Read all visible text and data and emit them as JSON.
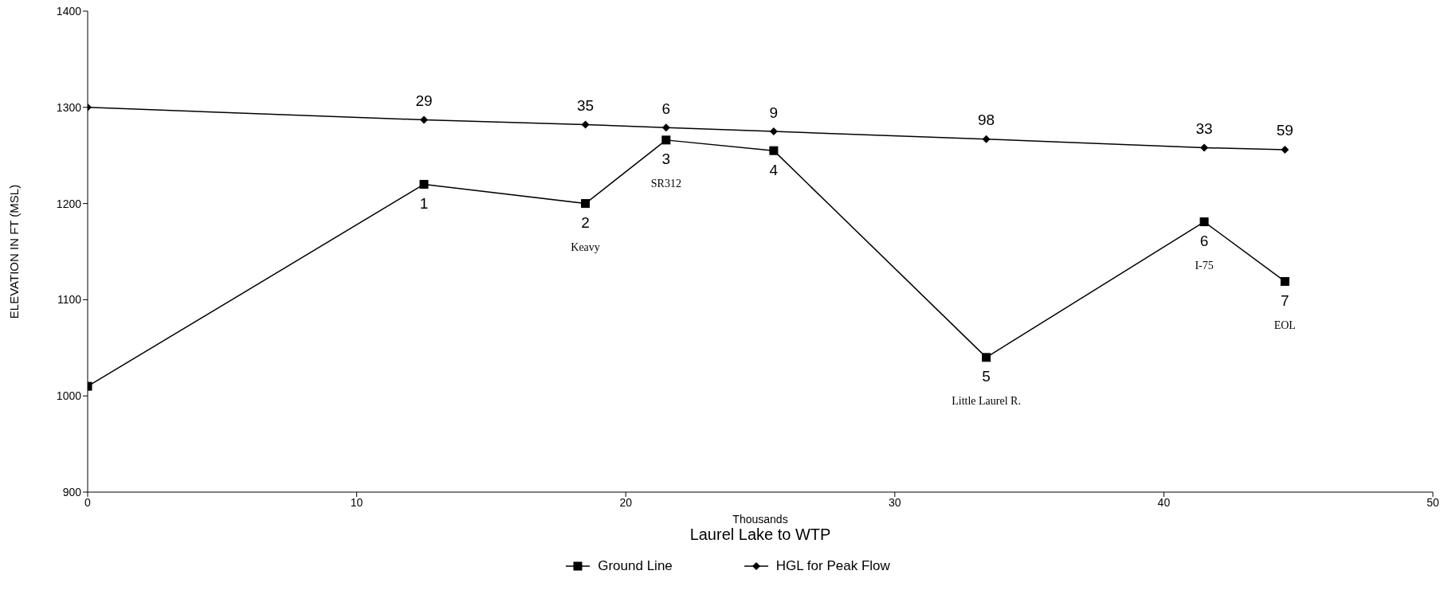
{
  "chart_data": {
    "type": "line",
    "xlabel": "Laurel Lake to WTP",
    "ylabel": "ELEVATION IN FT (MSL)",
    "x": [
      0,
      12.5,
      18.5,
      21.5,
      25.5,
      33.4,
      41.5,
      44.5
    ],
    "series": [
      {
        "name": "Ground Line",
        "color": "#000000",
        "marker": "square",
        "values": [
          1010,
          1220,
          1200,
          1266,
          1255,
          1040,
          1181,
          1119
        ]
      },
      {
        "name": "HGL for Peak Flow",
        "color": "#000000",
        "marker": "diamond",
        "values": [
          1300,
          1287,
          1282,
          1279,
          1275,
          1267,
          1258,
          1256
        ]
      }
    ],
    "xlim": [
      0,
      50
    ],
    "xticks": [
      0,
      10,
      20,
      30,
      40,
      50
    ],
    "ylim": [
      900,
      1400
    ],
    "yticks": [
      900,
      1000,
      1100,
      1200,
      1300,
      1400
    ],
    "grid": false,
    "legend": "bottom",
    "line_style": "solid",
    "annotations": [
      "Thousands",
      {
        "text": "29",
        "x": 12.5,
        "y": 1287
      },
      {
        "text": "35",
        "x": 18.5,
        "y": 1282
      },
      {
        "text": "6",
        "x": 21.5,
        "y": 1279
      },
      {
        "text": "9",
        "x": 25.5,
        "y": 1275
      },
      {
        "text": "98",
        "x": 33.4,
        "y": 1267
      },
      {
        "text": "33",
        "x": 41.5,
        "y": 1258
      },
      {
        "text": "59",
        "x": 44.5,
        "y": 1256
      },
      {
        "text": "1",
        "x": 12.5,
        "y": 1220
      },
      {
        "text": "2",
        "x": 18.5,
        "y": 1200
      },
      "Keavy",
      {
        "text": "3",
        "x": 21.5,
        "y": 1266
      },
      "SR312",
      {
        "text": "4",
        "x": 25.5,
        "y": 1255
      },
      {
        "text": "5",
        "x": 33.4,
        "y": 1040
      },
      "Little Laurel R.",
      {
        "text": "6",
        "x": 41.5,
        "y": 1181
      },
      "I-75",
      {
        "text": "7",
        "x": 44.5,
        "y": 1119
      },
      "EOL"
    ]
  }
}
